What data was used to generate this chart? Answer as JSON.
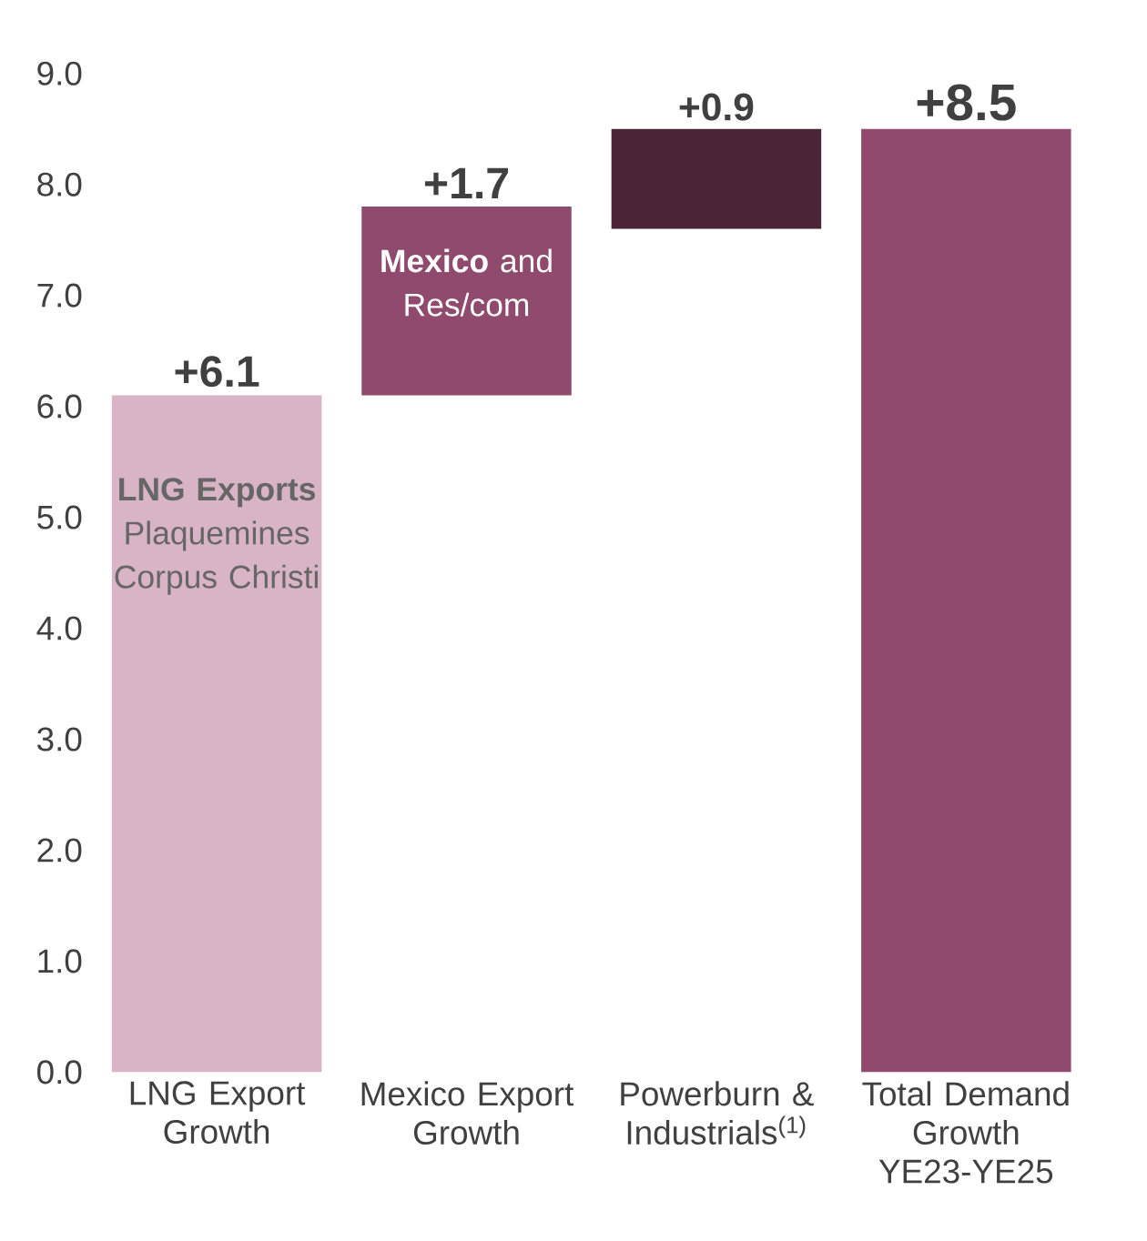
{
  "chart_data": {
    "type": "bar",
    "categories": [
      "LNG Export Growth",
      "Mexico Export Growth",
      "Powerburn & Industrials$^{(1)}$",
      "Total Demand Growth YE23-YE25"
    ],
    "values": [
      6.1,
      1.7,
      0.9,
      8.5
    ],
    "base": [
      0,
      6.1,
      7.6,
      0
    ],
    "colors": [
      "#d8b4c6",
      "#8f4a6d",
      "#4c2438",
      "#8f4a6d"
    ],
    "value_labels": [
      "+6.1",
      "+1.7",
      "+0.9",
      "+8.5"
    ],
    "ylim": [
      0,
      9
    ],
    "yticks": [
      {
        "value": 0,
        "label": "0.0"
      },
      {
        "value": 1,
        "label": "1.0"
      },
      {
        "value": 2,
        "label": "2.0"
      },
      {
        "value": 3,
        "label": "3.0"
      },
      {
        "value": 4,
        "label": "4.0"
      },
      {
        "value": 5,
        "label": "5.0"
      },
      {
        "value": 6,
        "label": "6.0"
      },
      {
        "value": 7,
        "label": "7.0"
      },
      {
        "value": 8,
        "label": "8.0"
      },
      {
        "value": 9,
        "label": "9.0"
      }
    ],
    "annotations": [
      "**LNG Exports** Plaquemines Corpus Christi",
      "**Mexico** and Res/com"
    ],
    "grid": false
  }
}
